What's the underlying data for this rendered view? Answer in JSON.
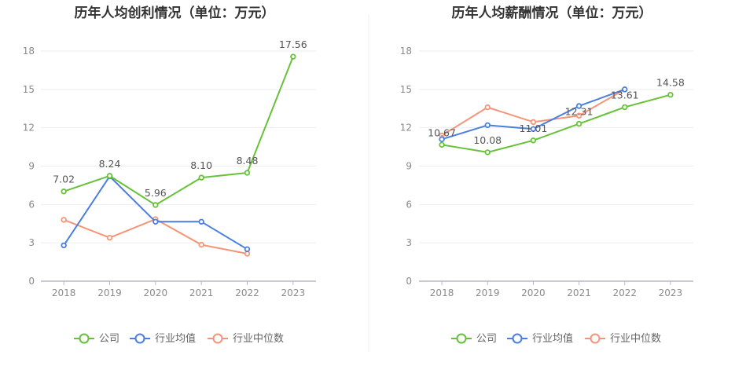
{
  "colors": {
    "company": "#67c23a",
    "industry_avg": "#4a7fe0",
    "industry_median": "#f59577",
    "grid": "#eeeeee",
    "axis": "#b8b8c8"
  },
  "legend": {
    "company": "公司",
    "industry_avg": "行业均值",
    "industry_median": "行业中位数"
  },
  "chart_data": [
    {
      "type": "line",
      "title": "历年人均创利情况（单位：万元）",
      "categories": [
        "2018",
        "2019",
        "2020",
        "2021",
        "2022",
        "2023"
      ],
      "ylim": [
        0,
        18
      ],
      "yticks": [
        0,
        3,
        6,
        9,
        12,
        15,
        18
      ],
      "grid": true,
      "legend_position": "bottom",
      "series": [
        {
          "name": "公司",
          "color": "#67c23a",
          "values": [
            7.02,
            8.24,
            5.96,
            8.1,
            8.48,
            17.56
          ],
          "labels": [
            "7.02",
            "8.24",
            "5.96",
            "8.10",
            "8.48",
            "17.56"
          ]
        },
        {
          "name": "行业均值",
          "color": "#4a7fe0",
          "values": [
            2.8,
            8.2,
            4.65,
            4.65,
            2.5,
            null
          ]
        },
        {
          "name": "行业中位数",
          "color": "#f59577",
          "values": [
            4.8,
            3.4,
            4.85,
            2.85,
            2.15,
            null
          ]
        }
      ]
    },
    {
      "type": "line",
      "title": "历年人均薪酬情况（单位：万元）",
      "categories": [
        "2018",
        "2019",
        "2020",
        "2021",
        "2022",
        "2023"
      ],
      "ylim": [
        0,
        18
      ],
      "yticks": [
        0,
        3,
        6,
        9,
        12,
        15,
        18
      ],
      "grid": true,
      "legend_position": "bottom",
      "series": [
        {
          "name": "公司",
          "color": "#67c23a",
          "values": [
            10.67,
            10.08,
            11.01,
            12.31,
            13.61,
            14.58
          ],
          "labels": [
            "10.67",
            "10.08",
            "11.01",
            "12.31",
            "13.61",
            "14.58"
          ]
        },
        {
          "name": "行业均值",
          "color": "#4a7fe0",
          "values": [
            11.1,
            12.2,
            11.9,
            13.7,
            15.0,
            null
          ]
        },
        {
          "name": "行业中位数",
          "color": "#f59577",
          "values": [
            11.4,
            13.6,
            12.45,
            12.95,
            15.0,
            null
          ]
        }
      ]
    }
  ]
}
